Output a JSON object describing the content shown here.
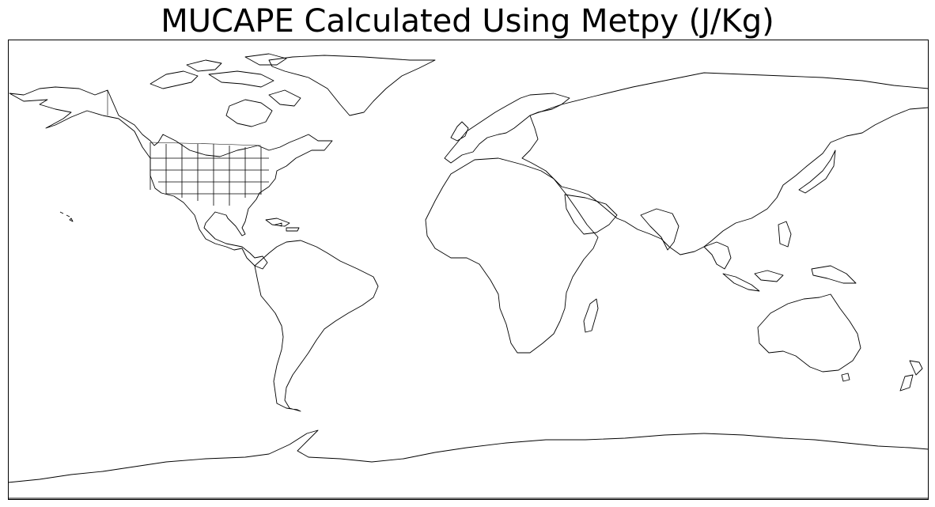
{
  "map": {
    "title": "MUCAPE Calculated Using Metpy (J/Kg)",
    "projection": "PlateCarree",
    "extent": {
      "lon": [
        -180,
        180
      ],
      "lat": [
        -90,
        90
      ]
    },
    "features": [
      "coastlines",
      "borders",
      "us-states"
    ],
    "colors": {
      "background": "#ffffff",
      "outline": "#000000"
    }
  }
}
